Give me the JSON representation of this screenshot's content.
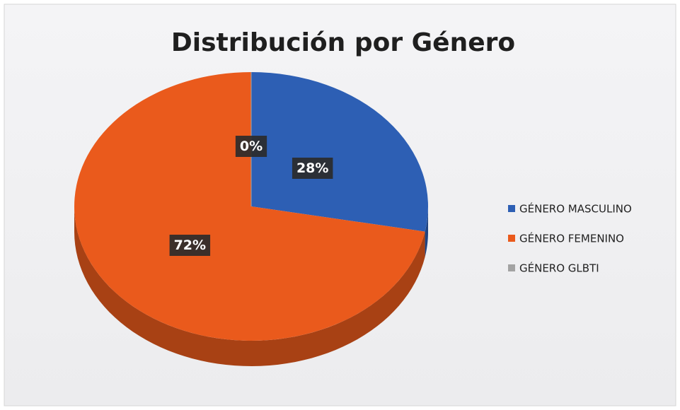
{
  "chart_data": {
    "type": "pie",
    "title": "Distribución por Género",
    "categories": [
      "GÉNERO MASCULINO",
      "GÉNERO FEMENINO",
      "GÉNERO GLBTI"
    ],
    "values": [
      28,
      72,
      0
    ],
    "value_labels": [
      "28%",
      "72%",
      "0%"
    ],
    "colors": [
      "#2d5fb4",
      "#ea5a1c",
      "#a3a3a3"
    ],
    "legend": "right"
  }
}
